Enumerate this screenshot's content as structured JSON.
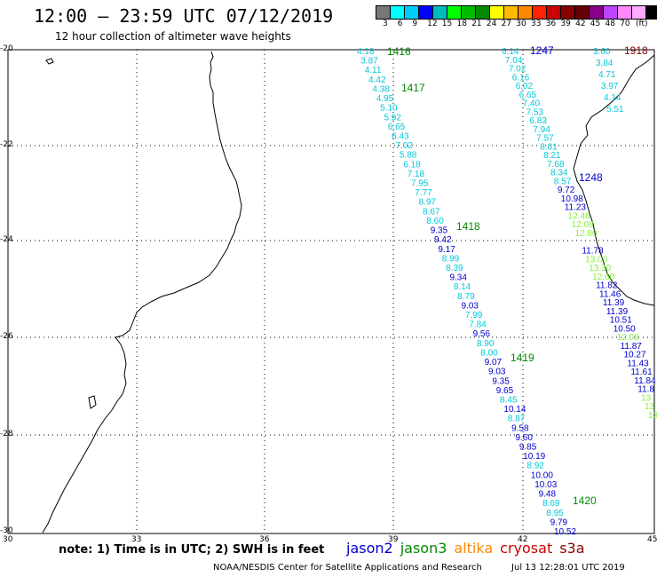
{
  "header": {
    "title": "12:00 – 23:59 UTC 07/12/2019",
    "subtitle": "12 hour collection of altimeter wave heights"
  },
  "scale": {
    "colors": [
      "#777777",
      "#00ffff",
      "#00ccff",
      "#0000ff",
      "#00bbbb",
      "#00ff00",
      "#00bb00",
      "#008800",
      "#ffff00",
      "#ffbb00",
      "#ff8800",
      "#ff2200",
      "#cc0000",
      "#880000",
      "#660000",
      "#880088",
      "#bb44ff",
      "#ff88ff",
      "#ffaaff",
      "#000000"
    ],
    "labels": [
      "3",
      "6",
      "9",
      "12",
      "15",
      "18",
      "21",
      "24",
      "27",
      "30",
      "33",
      "36",
      "39",
      "42",
      "45",
      "48",
      "70"
    ],
    "unit": "(ft)"
  },
  "axes": {
    "lat_labels": [
      "-20",
      "-22",
      "-24",
      "-26",
      "-28",
      "-30"
    ],
    "lon_labels": [
      "30",
      "33",
      "36",
      "39",
      "42",
      "45"
    ]
  },
  "footer": {
    "note": "note:  1) Time is in UTC;  2) SWH is in feet",
    "satellites": [
      {
        "name": "jason2",
        "color": "#0000cc"
      },
      {
        "name": "jason3",
        "color": "#008800"
      },
      {
        "name": "altika",
        "color": "#ff8800"
      },
      {
        "name": "cryosat",
        "color": "#cc0000"
      },
      {
        "name": "s3a",
        "color": "#880000"
      }
    ],
    "credit": "NOAA/NESDIS Center for Satellite Applications and Research",
    "timestamp": "Jul 13 12:28:01 UTC 2019"
  },
  "passes": [
    {
      "time": "1416",
      "color": "#008800"
    },
    {
      "time": "1417",
      "color": "#008800"
    },
    {
      "time": "1418",
      "color": "#008800"
    },
    {
      "time": "1419",
      "color": "#008800"
    },
    {
      "time": "1420",
      "color": "#008800"
    },
    {
      "time": "1247",
      "color": "#0000cc"
    },
    {
      "time": "1248",
      "color": "#0000cc"
    },
    {
      "time": "1918",
      "color": "#880000"
    }
  ],
  "track_left": {
    "values": [
      "4.18",
      "3.87",
      "4.11",
      "4.42",
      "4.38",
      "4.95",
      "5.10",
      "5.92",
      "6.65",
      "6.43",
      "7.02",
      "5.88",
      "6.18",
      "7.18",
      "7.95",
      "7.77",
      "8.97",
      "8.67",
      "8.60",
      "9.35",
      "9.42",
      "9.17",
      "8.99",
      "8.39",
      "9.34",
      "8.14",
      "8.79",
      "9.03",
      "7.99",
      "7.84",
      "9.56",
      "8.90",
      "8.00",
      "9.07",
      "9.03",
      "9.35",
      "9.65",
      "8.45",
      "10.14",
      "8.87",
      "9.58",
      "9.60",
      "9.85",
      "10.19",
      "8.92",
      "10.00",
      "10.03",
      "9.48",
      "8.69",
      "8.95",
      "9.79",
      "10.52"
    ],
    "colors": [
      "c",
      "c",
      "c",
      "c",
      "c",
      "c",
      "c",
      "c",
      "c",
      "c",
      "c",
      "c",
      "c",
      "c",
      "c",
      "c",
      "c",
      "c",
      "c",
      "b",
      "b",
      "b",
      "c",
      "c",
      "b",
      "c",
      "c",
      "b",
      "c",
      "c",
      "b",
      "c",
      "c",
      "b",
      "b",
      "b",
      "b",
      "c",
      "b",
      "c",
      "b",
      "b",
      "b",
      "b",
      "c",
      "b",
      "b",
      "b",
      "c",
      "c",
      "b",
      "b"
    ]
  },
  "track_mid": {
    "values": [
      "6.14",
      "7.04",
      "7.02",
      "6.16",
      "6.02",
      "6.65",
      "7.40",
      "7.53",
      "6.83",
      "7.94",
      "7.57",
      "8.01",
      "8.21",
      "7.68",
      "8.34",
      "8.57",
      "9.72",
      "10.98",
      "11.23",
      "12.48",
      "12.08",
      "12.80",
      "",
      "11.78",
      "13.00",
      "13.30",
      "12.60",
      "11.82",
      "11.46",
      "11.39",
      "11.39",
      "10.51",
      "10.50",
      "12.08",
      "11.87",
      "10.27",
      "11.43",
      "11.61",
      "11.84",
      "11.8",
      "13",
      "13",
      "13"
    ],
    "colors": [
      "c",
      "c",
      "c",
      "c",
      "c",
      "c",
      "c",
      "c",
      "c",
      "c",
      "c",
      "c",
      "c",
      "c",
      "c",
      "c",
      "b",
      "b",
      "b",
      "g",
      "g",
      "g",
      "g",
      "b",
      "g",
      "g",
      "g",
      "b",
      "b",
      "b",
      "b",
      "b",
      "b",
      "g",
      "b",
      "b",
      "b",
      "b",
      "b",
      "b",
      "g",
      "g",
      "g"
    ]
  },
  "track_right": {
    "values": [
      "3.60",
      "3.84",
      "4.71",
      "3.97",
      "4.14",
      "5.51"
    ],
    "colors": [
      "c",
      "c",
      "c",
      "c",
      "c",
      "c"
    ]
  }
}
